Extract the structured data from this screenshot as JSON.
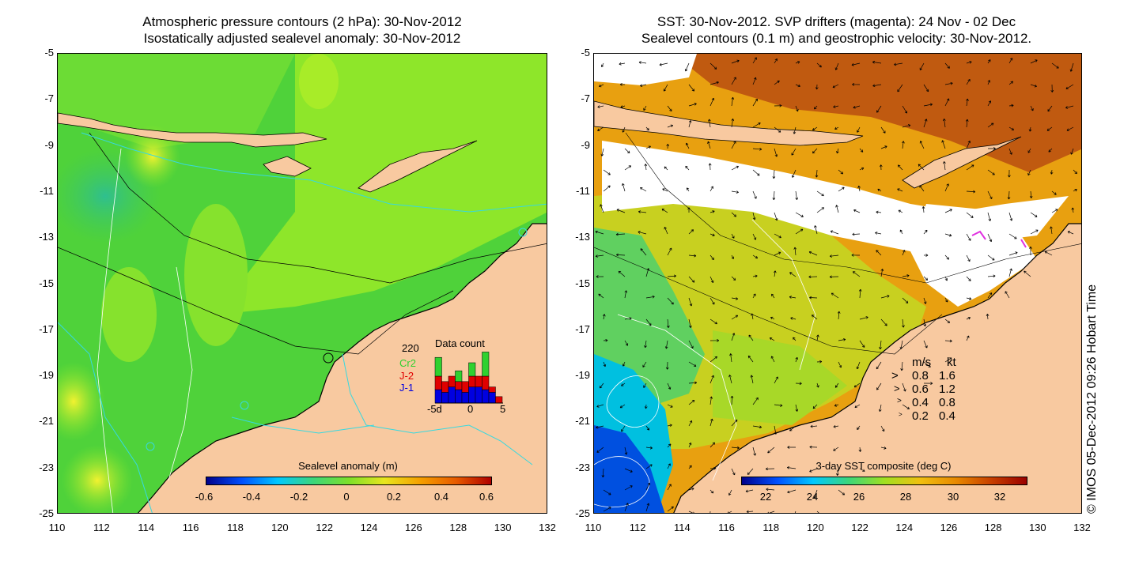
{
  "left_panel": {
    "title_line1": "Atmospheric pressure contours (2 hPa): 30-Nov-2012",
    "title_line2": "Isostatically adjusted sealevel anomaly: 30-Nov-2012",
    "colorbar_title": "Sealevel anomaly (m)",
    "colorbar_ticks": [
      "-0.6",
      "-0.4",
      "-0.2",
      "0",
      "0.2",
      "0.4",
      "0.6"
    ],
    "inset": {
      "title": "Data count",
      "max_label": "220",
      "legend": [
        {
          "label": "Cr2",
          "color": "#2fd12f"
        },
        {
          "label": "J-2",
          "color": "#e00000"
        },
        {
          "label": "J-1",
          "color": "#0000e0"
        }
      ],
      "x_ticks": [
        "-5d",
        "0",
        "5"
      ],
      "bars": [
        {
          "j1": 0.25,
          "j2": 0.25,
          "cr2": 0.35
        },
        {
          "j1": 0.2,
          "j2": 0.2,
          "cr2": 0.0
        },
        {
          "j1": 0.3,
          "j2": 0.2,
          "cr2": 0.0
        },
        {
          "j1": 0.25,
          "j2": 0.15,
          "cr2": 0.2
        },
        {
          "j1": 0.2,
          "j2": 0.2,
          "cr2": 0.0
        },
        {
          "j1": 0.3,
          "j2": 0.2,
          "cr2": 0.25
        },
        {
          "j1": 0.3,
          "j2": 0.2,
          "cr2": 0.0
        },
        {
          "j1": 0.25,
          "j2": 0.25,
          "cr2": 0.45
        },
        {
          "j1": 0.2,
          "j2": 0.1,
          "cr2": 0.0
        },
        {
          "j1": 0.0,
          "j2": 0.12,
          "cr2": 0.0
        }
      ]
    }
  },
  "right_panel": {
    "title_line1": "SST: 30-Nov-2012. SVP drifters (magenta): 24 Nov - 02 Dec",
    "title_line2": "Sealevel contours (0.1 m) and geostrophic velocity: 30-Nov-2012.",
    "colorbar_title": "3-day SST composite (deg C)",
    "colorbar_ticks": [
      "22",
      "24",
      "26",
      "28",
      "30",
      "32"
    ],
    "velocity_legend": {
      "header_ms": "m/s",
      "header_kt": "kt",
      "rows": [
        {
          "ms": "0.8",
          "kt": "1.6"
        },
        {
          "ms": "0.6",
          "kt": "1.2"
        },
        {
          "ms": "0.4",
          "kt": "0.8"
        },
        {
          "ms": "0.2",
          "kt": "0.4"
        }
      ]
    }
  },
  "axes": {
    "y_ticks": [
      "-5",
      "-7",
      "-9",
      "-11",
      "-13",
      "-15",
      "-17",
      "-19",
      "-21",
      "-23",
      "-25"
    ],
    "x_ticks": [
      "110",
      "112",
      "114",
      "116",
      "118",
      "120",
      "122",
      "124",
      "126",
      "128",
      "130",
      "132"
    ]
  },
  "credit": "© IMOS 05-Dec-2012 09:26 Hobart Time",
  "colors": {
    "land": "#f8c9a0",
    "ocean_left": "#5fdc3a",
    "ocean_right_warm": "#e89a10",
    "cyan_line": "#36d9e0"
  }
}
